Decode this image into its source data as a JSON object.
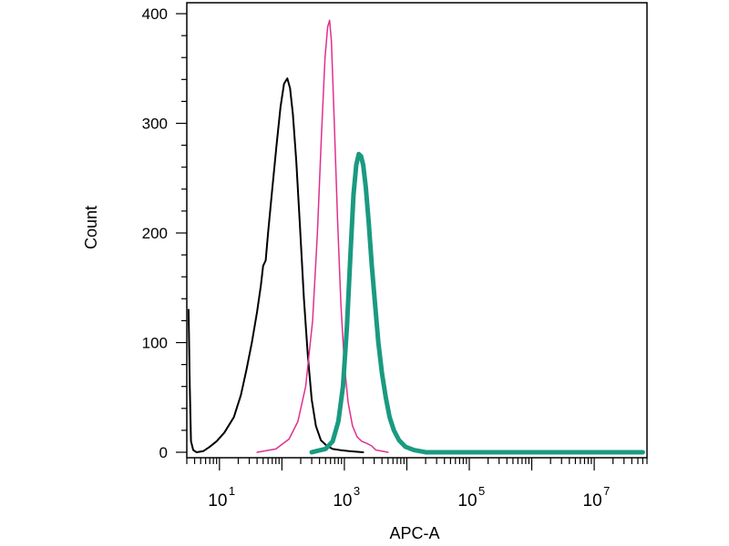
{
  "chart_data": {
    "type": "line",
    "title": "",
    "xlabel": "APC-A",
    "ylabel": "Count",
    "x_scale": "log",
    "xlim": [
      3,
      70000000
    ],
    "ylim": [
      -5,
      410
    ],
    "grid": false,
    "yticks": [
      {
        "value": 0,
        "label": "0"
      },
      {
        "value": 100,
        "label": "100"
      },
      {
        "value": 200,
        "label": "200"
      },
      {
        "value": 300,
        "label": "300"
      },
      {
        "value": 400,
        "label": "400"
      }
    ],
    "xticks": [
      {
        "value": 10,
        "base": "10",
        "exp": "1"
      },
      {
        "value": 1000,
        "base": "10",
        "exp": "3"
      },
      {
        "value": 100000,
        "base": "10",
        "exp": "5"
      },
      {
        "value": 10000000,
        "base": "10",
        "exp": "7"
      }
    ],
    "series": [
      {
        "color": "#000000",
        "width": 2,
        "points": [
          [
            3.2,
            130
          ],
          [
            3.35,
            60
          ],
          [
            3.5,
            10
          ],
          [
            3.8,
            2
          ],
          [
            4.3,
            0
          ],
          [
            5.5,
            1
          ],
          [
            7,
            5
          ],
          [
            9,
            10
          ],
          [
            12,
            18
          ],
          [
            17,
            32
          ],
          [
            22,
            52
          ],
          [
            27,
            75
          ],
          [
            33,
            100
          ],
          [
            40,
            128
          ],
          [
            46,
            152
          ],
          [
            50,
            170
          ],
          [
            55,
            175
          ],
          [
            60,
            200
          ],
          [
            70,
            240
          ],
          [
            82,
            280
          ],
          [
            95,
            315
          ],
          [
            108,
            336
          ],
          [
            122,
            341
          ],
          [
            135,
            332
          ],
          [
            150,
            308
          ],
          [
            170,
            265
          ],
          [
            195,
            205
          ],
          [
            225,
            140
          ],
          [
            260,
            88
          ],
          [
            300,
            48
          ],
          [
            350,
            24
          ],
          [
            420,
            11
          ],
          [
            520,
            6
          ],
          [
            650,
            3
          ],
          [
            850,
            2
          ],
          [
            1200,
            1
          ],
          [
            2000,
            0
          ]
        ]
      },
      {
        "color": "#e0308c",
        "width": 1.5,
        "points": [
          [
            40,
            0
          ],
          [
            80,
            3
          ],
          [
            130,
            12
          ],
          [
            180,
            28
          ],
          [
            240,
            60
          ],
          [
            310,
            120
          ],
          [
            370,
            200
          ],
          [
            430,
            290
          ],
          [
            490,
            360
          ],
          [
            540,
            388
          ],
          [
            580,
            394
          ],
          [
            620,
            375
          ],
          [
            690,
            300
          ],
          [
            780,
            210
          ],
          [
            880,
            135
          ],
          [
            1000,
            80
          ],
          [
            1150,
            45
          ],
          [
            1350,
            24
          ],
          [
            1600,
            14
          ],
          [
            1900,
            10
          ],
          [
            2300,
            8
          ],
          [
            2700,
            6
          ],
          [
            3200,
            2
          ],
          [
            4000,
            1
          ],
          [
            5000,
            0
          ]
        ]
      },
      {
        "color": "#1a9a80",
        "width": 5,
        "points": [
          [
            300,
            0
          ],
          [
            500,
            3
          ],
          [
            650,
            10
          ],
          [
            800,
            28
          ],
          [
            950,
            60
          ],
          [
            1100,
            115
          ],
          [
            1250,
            180
          ],
          [
            1400,
            235
          ],
          [
            1550,
            262
          ],
          [
            1700,
            272
          ],
          [
            1850,
            270
          ],
          [
            2000,
            262
          ],
          [
            2200,
            242
          ],
          [
            2450,
            210
          ],
          [
            2750,
            170
          ],
          [
            3100,
            135
          ],
          [
            3500,
            100
          ],
          [
            4000,
            72
          ],
          [
            4600,
            50
          ],
          [
            5300,
            32
          ],
          [
            6200,
            20
          ],
          [
            7500,
            11
          ],
          [
            9500,
            5
          ],
          [
            13000,
            2
          ],
          [
            20000,
            0
          ],
          [
            60000000,
            0
          ]
        ]
      }
    ]
  }
}
